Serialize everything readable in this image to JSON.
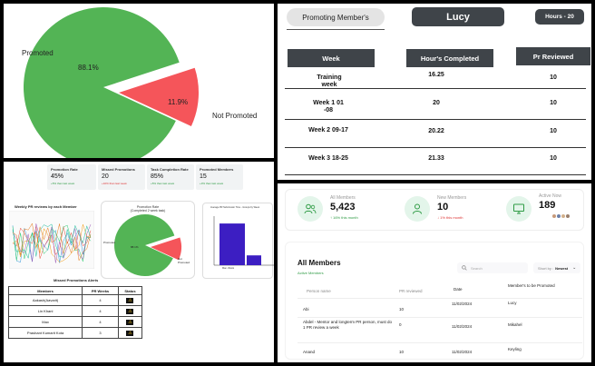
{
  "promotion_pie": {
    "labels": {
      "promoted": "Promoted",
      "not_promoted": "Not Promoted"
    },
    "pct": {
      "promoted": "88.1%",
      "not_promoted": "11.9%"
    },
    "colors": {
      "promoted": "#53b455",
      "not_promoted": "#f5555a"
    }
  },
  "lucy": {
    "promoting_label": "Promoting Member's",
    "member_name": "Lucy",
    "hours": "Hours - 20",
    "headers": [
      "Week",
      "Hour's Completed",
      "Pr Reviewed"
    ],
    "rows": [
      {
        "week": "Training week",
        "hours": "16.25",
        "pr": "10"
      },
      {
        "week": "Week 1 01 -08",
        "hours": "20",
        "pr": "10"
      },
      {
        "week": "Week 2 09-17",
        "hours": "20.22",
        "pr": "10"
      },
      {
        "week": "Week 3 18-25",
        "hours": "21.33",
        "pr": "10"
      }
    ]
  },
  "dashboard": {
    "cards": [
      {
        "title": "Promotion Rate",
        "value": "45%",
        "sub": "+5% than last week",
        "sub_color": "#2e9b44"
      },
      {
        "title": "Missed Promotions",
        "value": "20",
        "sub": "+10% than last week",
        "sub_color": "#d33"
      },
      {
        "title": "Task Completion Rate",
        "value": "85%",
        "sub": "+5% than last week",
        "sub_color": "#2e9b44"
      },
      {
        "title": "Promoted Members",
        "value": "15",
        "sub": "+3% than last week",
        "sub_color": "#2e9b44"
      }
    ],
    "line_title": "Weekly PR reviews by each Member",
    "pie_title": "Promotion Rate\n(Completed 2 week task)",
    "pie_labels": {
      "promoted": "Promoted",
      "not_promoted": "Not Promoted"
    },
    "pie_pct": "88.1%",
    "bar_title": "Average PR Submission Time - Groups by Week",
    "bar_chart": {
      "type": "bar",
      "categories": [
        "Mac- Wests",
        ""
      ],
      "values": [
        85,
        20
      ],
      "ylim": [
        0,
        100
      ]
    },
    "alerts_title": "Missed Promotions Alerts",
    "alerts_headers": [
      "Members",
      "PR Weeks",
      "Status"
    ],
    "alerts_rows": [
      {
        "member": "Aakash(Aavarit)",
        "weeks": "4"
      },
      {
        "member": "Lin Khanl",
        "weeks": "4"
      },
      {
        "member": "Max",
        "weeks": "4"
      },
      {
        "member": "Prashant Kumarit Kota",
        "weeks": "3"
      }
    ]
  },
  "members": {
    "stats": [
      {
        "label": "All Members",
        "value": "5,423",
        "sub": "↑ 16% this month",
        "sub_color": "#2e9b44",
        "icon": "users-icon"
      },
      {
        "label": "New Members",
        "value": "10",
        "sub": "↓ 1% this month",
        "sub_color": "#d33",
        "icon": "user-icon"
      },
      {
        "label": "Active Now",
        "value": "189",
        "sub": "",
        "sub_color": "#2e9b44",
        "icon": "monitor-icon"
      }
    ],
    "section_title": "All Members",
    "active_link": "Active Members",
    "search_placeholder": "Search",
    "sort_label": "Short by :",
    "sort_value": "Newest",
    "headers": [
      "Person name",
      "PR reviewed",
      "Date",
      "Member's to be Promoted"
    ],
    "rows": [
      {
        "name": "Abi",
        "pr": "10",
        "date": "11/02/2024",
        "promoted": "Lucy"
      },
      {
        "name": "Abdel - Mentor and longterm PR person, must do 1 PR review a week",
        "pr": "0",
        "date": "11/02/2024",
        "promoted": "Mikahel"
      },
      {
        "name": "Anand",
        "pr": "10",
        "date": "11/02/2024",
        "promoted": "Keyling"
      }
    ]
  }
}
